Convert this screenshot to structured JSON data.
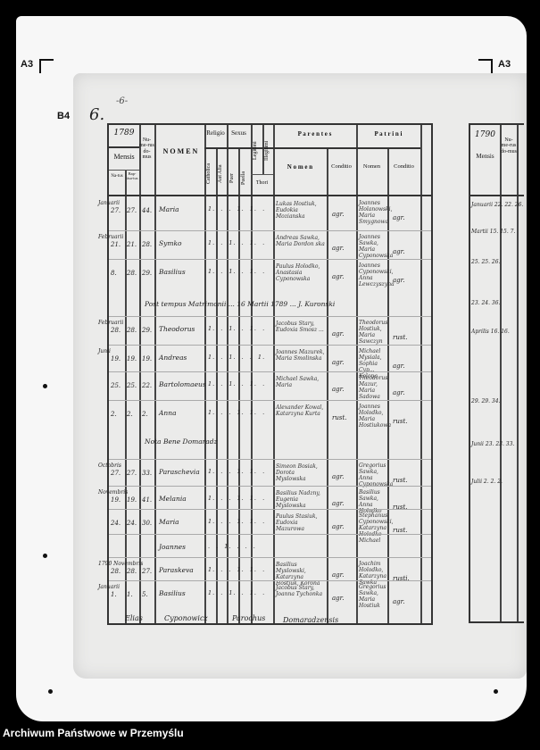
{
  "markers": {
    "top_left": "A3",
    "top_right": "A3",
    "left": "B4"
  },
  "page_number": "6.",
  "page_mark": "-6-",
  "header": {
    "year": "1789",
    "year_prefix": "18",
    "mensis": "Mensis",
    "natus": "Na-tus",
    "baptisatus": "Bap-tisa-tus",
    "numerus_domus": "Nu-me-rus do-mus",
    "nomen": "N O M E N",
    "religio": "Religio",
    "catholica": "Catholica",
    "aut_alia": "Aut Alia",
    "sexus": "Sexus",
    "puer": "Puer",
    "puella": "Puella",
    "legitimi": "Legitimi",
    "illegitimi": "Illegitimi",
    "thori": "Thori",
    "parentes": "P a r e n t e s",
    "parentes_nomen": "N o m e n",
    "parentes_conditio": "Conditio",
    "patrini": "P a t r i n i",
    "patrini_nomen": "Nomen",
    "patrini_conditio": "Conditio"
  },
  "rows": [
    {
      "month": "Januarii",
      "natus": "27.",
      "baptis": "27.",
      "domus": "44.",
      "nomen": "Maria",
      "marks": "1.  .  .  1.  1.  .",
      "parentes": "Lukas Hostiuk, Eudokia Mozianska",
      "cond": "agr.",
      "patrini": "Joannes Holanowski, Maria Smygnowa",
      "pcond": "agr."
    },
    {
      "month": "Februarii",
      "natus": "21.",
      "baptis": "21.",
      "domus": "28.",
      "nomen": "Symko",
      "marks": "1.  .  1.  .  1.  .",
      "parentes": "Andreas Sawka, Maria Dordon ska",
      "cond": "agr.",
      "patrini": "Joannes Sawka, Maria Cyponowska",
      "pcond": "agr."
    },
    {
      "month": "",
      "natus": "8.",
      "baptis": "28.",
      "domus": "29.",
      "nomen": "Basilius",
      "marks": "1.  .  1.  .  1.  .",
      "parentes": "Paulus Holodko, Anastasia Cyponowska",
      "cond": "agr.",
      "patrini": "Ioannes Cyponowski, Anna Lewczyszyna",
      "pcond": "agr."
    },
    {
      "note": "Post tempus Matrimonii ... 16 Martii 1789 ... J. Kuronski"
    },
    {
      "month": "Februarii",
      "natus": "28.",
      "baptis": "28.",
      "domus": "29.",
      "nomen": "Theodorus",
      "marks": "1.  .  1.  .  1.  .",
      "parentes": "Jacobus Stary, Eudoxia Smosz ...",
      "cond": "agr.",
      "patrini": "Theodorus Hostiuk, Maria Sawczyn",
      "pcond": "rust."
    },
    {
      "month": "Junii",
      "natus": "19.",
      "baptis": "19.",
      "domus": "19.",
      "nomen": "Andreas",
      "marks": "1.  .  1.  .  .  1.",
      "parentes": "Joannes Mazurek, Maria Smolinska",
      "cond": "agr.",
      "patrini": "Michael Mysiala, Sophia Cyp... Kolona",
      "pcond": "agr."
    },
    {
      "month": "",
      "natus": "25.",
      "baptis": "25.",
      "domus": "22.",
      "nomen": "Bartolomaeus",
      "marks": "1.  .  1.  .  1.  .",
      "parentes": "Michael Sawka, Maria",
      "cond": "agr.",
      "patrini": "Theodorus Mazur, Maria Sadowa",
      "pcond": "agr."
    },
    {
      "month": "",
      "natus": "2.",
      "baptis": "2.",
      "domus": "2.",
      "nomen": "Anna",
      "marks": "1.  .  .  1.  1.  .",
      "parentes": "Alexander Kowal, Katarzyna Kurta",
      "cond": "rust.",
      "patrini": "Joannes Holodko, Maria Hostiukowa",
      "pcond": "rust."
    },
    {
      "note": "Nota Bene Domaradz"
    },
    {
      "month": "Octobris",
      "natus": "27.",
      "baptis": "27.",
      "domus": "33.",
      "nomen": "Paraschevia",
      "marks": "1.  .  .  1.  1.  .",
      "parentes": "Simeon Bosiak, Dorota Myslowska",
      "cond": "agr.",
      "patrini": "Gregorius Sawka, Anna Cyponowska",
      "pcond": "rust."
    },
    {
      "month": "Novembris",
      "natus": "19.",
      "baptis": "19.",
      "domus": "41.",
      "nomen": "Melania",
      "marks": "1.  .  .  1.  1.  .",
      "parentes": "Basilius Nadzny, Eugenia Myslowska",
      "cond": "agr.",
      "patrini": "Basilius Sawka, Anna Holodko",
      "pcond": "rust."
    },
    {
      "month": "",
      "natus": "24.",
      "baptis": "24.",
      "domus": "30.",
      "nomen": "Maria",
      "marks": "1.  .  .  1.  1.  .",
      "parentes": "Paulus Stasiuk, Eudoxia Mazurowa",
      "cond": "agr.",
      "patrini": "Stephanus Cyponowski, Katarzyna Holodko",
      "pcond": "rust."
    },
    {
      "month": "",
      "natus": "",
      "baptis": "",
      "domus": "",
      "nomen": "Joannes",
      "marks": ".  .  1.  .  .  .",
      "parentes": "",
      "cond": "",
      "patrini": "Michael",
      "pcond": ""
    },
    {
      "month": "1790 Novembris",
      "natus": "28.",
      "baptis": "28.",
      "domus": "27.",
      "nomen": "Paraskeva",
      "marks": "1.  .  .  1.  1.  .",
      "parentes": "Basilius Myslowski, Katarzyna Hostiuk, Korona",
      "cond": "agr.",
      "patrini": "Joachim Holodko, Katarzyna Sawka",
      "pcond": "rusti."
    },
    {
      "month": "Januarii",
      "natus": "1.",
      "baptis": "1.",
      "domus": "5.",
      "nomen": "Basilius",
      "marks": "1.  .  1.  .  1.  .",
      "parentes": "Jacobus Stary, Joanna Tychonka",
      "cond": "agr.",
      "patrini": "Gregorius Sawka, Maria Hostiuk",
      "pcond": "agr."
    }
  ],
  "signatures": [
    "Elias",
    "Cyponowicz",
    "Parochus",
    "Domaradzensis"
  ],
  "right_page": {
    "year": "1790",
    "mensis": "Mensis",
    "natus": "Na-tus",
    "baptis": "Bap-tis",
    "numerus": "Nu-me-rus do-mus",
    "entries": [
      "Januarii 22. 22. 26.",
      "Martii 15. 15. 7.",
      "25. 25. 26.",
      "23. 24. 36.",
      "Aprilis 16. 16.",
      "29. 29. 34.",
      "Junii 23. 23. 33.",
      "Julii 2. 2. 2."
    ]
  },
  "footer": "Archiwum Państwowe w Przemyślu"
}
